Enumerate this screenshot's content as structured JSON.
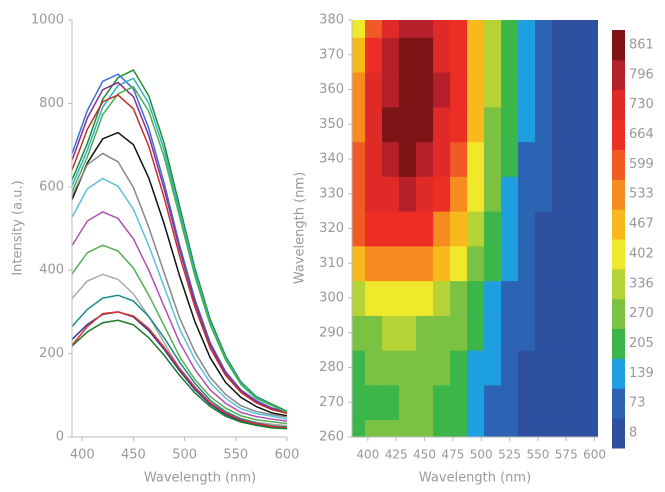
{
  "chart_data": [
    {
      "type": "line",
      "xlabel": "Wavelength (nm)",
      "ylabel": "Intensity (a.u.)",
      "x": [
        390,
        405,
        420,
        435,
        450,
        465,
        480,
        495,
        510,
        525,
        540,
        555,
        570,
        585,
        600
      ],
      "xlim": [
        390,
        600
      ],
      "xticks": [
        400,
        450,
        500,
        550,
        600
      ],
      "ylim": [
        0,
        1000
      ],
      "yticks": [
        0,
        200,
        400,
        600,
        800,
        1000
      ],
      "series": [
        {
          "color": "#1a8c2e",
          "values": [
            616,
            704,
            810,
            862,
            880,
            818,
            704,
            554,
            405,
            282,
            194,
            132,
            97,
            79,
            62
          ]
        },
        {
          "color": "#3a6fd8",
          "values": [
            679,
            783,
            853,
            870,
            835,
            740,
            609,
            461,
            331,
            226,
            157,
            113,
            87,
            70,
            61
          ]
        },
        {
          "color": "#2fb0c8",
          "values": [
            602,
            688,
            791,
            843,
            860,
            800,
            688,
            542,
            396,
            275,
            189,
            129,
            95,
            77,
            60
          ]
        },
        {
          "color": "#8e2d8e",
          "values": [
            663,
            765,
            833,
            850,
            816,
            723,
            595,
            451,
            323,
            221,
            153,
            111,
            85,
            68,
            60
          ]
        },
        {
          "color": "#4ab04a",
          "values": [
            588,
            672,
            773,
            823,
            840,
            781,
            672,
            529,
            386,
            269,
            185,
            126,
            92,
            76,
            59
          ]
        },
        {
          "color": "#c03030",
          "values": [
            640,
            738,
            804,
            820,
            787,
            697,
            574,
            435,
            312,
            213,
            148,
            107,
            82,
            66,
            57
          ]
        },
        {
          "color": "#111111",
          "values": [
            569,
            657,
            715,
            730,
            701,
            621,
            511,
            387,
            277,
            190,
            131,
            95,
            73,
            58,
            51
          ]
        },
        {
          "color": "#888888",
          "values": [
            578,
            653,
            680,
            660,
            598,
            503,
            394,
            286,
            204,
            143,
            102,
            75,
            61,
            54,
            48
          ]
        },
        {
          "color": "#5bc0de",
          "values": [
            527,
            595,
            620,
            601,
            546,
            459,
            360,
            260,
            186,
            130,
            93,
            68,
            56,
            50,
            43
          ]
        },
        {
          "color": "#b050b0",
          "values": [
            459,
            518,
            540,
            524,
            475,
            400,
            313,
            227,
            162,
            113,
            81,
            59,
            49,
            43,
            38
          ]
        },
        {
          "color": "#55b050",
          "values": [
            391,
            442,
            460,
            446,
            405,
            340,
            267,
            193,
            138,
            97,
            69,
            51,
            41,
            37,
            32
          ]
        },
        {
          "color": "#aaaaaa",
          "values": [
            332,
            374,
            390,
            378,
            343,
            289,
            226,
            164,
            117,
            82,
            59,
            43,
            35,
            31,
            27
          ]
        },
        {
          "color": "#1a8a8a",
          "values": [
            265,
            306,
            333,
            340,
            326,
            289,
            238,
            180,
            129,
            88,
            61,
            44,
            34,
            27,
            24
          ]
        },
        {
          "color": "#2b3f8f",
          "values": [
            234,
            270,
            294,
            300,
            288,
            255,
            210,
            159,
            114,
            78,
            54,
            39,
            30,
            24,
            21
          ]
        },
        {
          "color": "#e03030",
          "values": [
            220,
            265,
            296,
            300,
            290,
            260,
            215,
            165,
            120,
            82,
            57,
            41,
            32,
            26,
            22
          ]
        },
        {
          "color": "#1a7a2a",
          "values": [
            218,
            252,
            274,
            280,
            269,
            238,
            196,
            148,
            106,
            73,
            50,
            36,
            28,
            22,
            20
          ]
        }
      ]
    },
    {
      "type": "heatmap",
      "xlabel": "Wavelength (nm)",
      "ylabel": "Wavelength (nm)",
      "x": [
        390,
        405,
        420,
        435,
        450,
        465,
        480,
        495,
        510,
        525,
        540,
        555,
        570,
        585,
        600
      ],
      "y": [
        260,
        270,
        280,
        290,
        300,
        310,
        320,
        330,
        340,
        350,
        360,
        370,
        380
      ],
      "xlim": [
        386,
        603
      ],
      "xticks": [
        400,
        425,
        450,
        475,
        500,
        525,
        550,
        575,
        600
      ],
      "ylim": [
        260,
        380
      ],
      "yticks": [
        260,
        270,
        280,
        290,
        300,
        310,
        320,
        330,
        340,
        350,
        360,
        370,
        380
      ],
      "values": [
        [
          210,
          240,
          250,
          250,
          250,
          230,
          190,
          140,
          90,
          55,
          30,
          15,
          8,
          8,
          8
        ],
        [
          200,
          220,
          230,
          240,
          240,
          230,
          200,
          150,
          100,
          60,
          35,
          18,
          10,
          8,
          8
        ],
        [
          220,
          240,
          250,
          250,
          250,
          240,
          210,
          160,
          110,
          70,
          40,
          20,
          10,
          8,
          8
        ],
        [
          280,
          300,
          310,
          310,
          300,
          280,
          240,
          190,
          130,
          80,
          50,
          25,
          12,
          8,
          8
        ],
        [
          360,
          390,
          400,
          400,
          390,
          350,
          290,
          230,
          160,
          100,
          60,
          30,
          15,
          8,
          8
        ],
        [
          480,
          520,
          540,
          540,
          520,
          460,
          370,
          270,
          190,
          120,
          70,
          35,
          18,
          10,
          8
        ],
        [
          580,
          640,
          680,
          680,
          650,
          560,
          450,
          320,
          210,
          140,
          80,
          40,
          20,
          10,
          8
        ],
        [
          600,
          700,
          760,
          770,
          740,
          650,
          530,
          370,
          240,
          160,
          90,
          45,
          22,
          10,
          8
        ],
        [
          580,
          720,
          820,
          840,
          820,
          720,
          600,
          420,
          270,
          180,
          100,
          50,
          25,
          12,
          8
        ],
        [
          560,
          720,
          830,
          860,
          850,
          760,
          640,
          450,
          290,
          200,
          110,
          55,
          30,
          15,
          8
        ],
        [
          520,
          700,
          820,
          860,
          860,
          780,
          660,
          470,
          310,
          210,
          120,
          60,
          35,
          18,
          10
        ],
        [
          480,
          680,
          780,
          840,
          840,
          760,
          660,
          480,
          320,
          220,
          130,
          70,
          40,
          20,
          10
        ],
        [
          420,
          620,
          720,
          780,
          780,
          720,
          640,
          480,
          320,
          230,
          140,
          70,
          40,
          20,
          10
        ]
      ],
      "colorbar": {
        "levels": [
          8,
          73,
          139,
          205,
          270,
          336,
          402,
          467,
          533,
          599,
          664,
          730,
          796,
          861
        ],
        "colors": [
          "#2f4f9f",
          "#2d63b3",
          "#1e9fe0",
          "#3cb54a",
          "#7cc242",
          "#b5d334",
          "#f0e82a",
          "#f9b81c",
          "#f68b1f",
          "#f15a24",
          "#ec2e24",
          "#e02a28",
          "#b5202a",
          "#7d1416"
        ]
      }
    }
  ]
}
